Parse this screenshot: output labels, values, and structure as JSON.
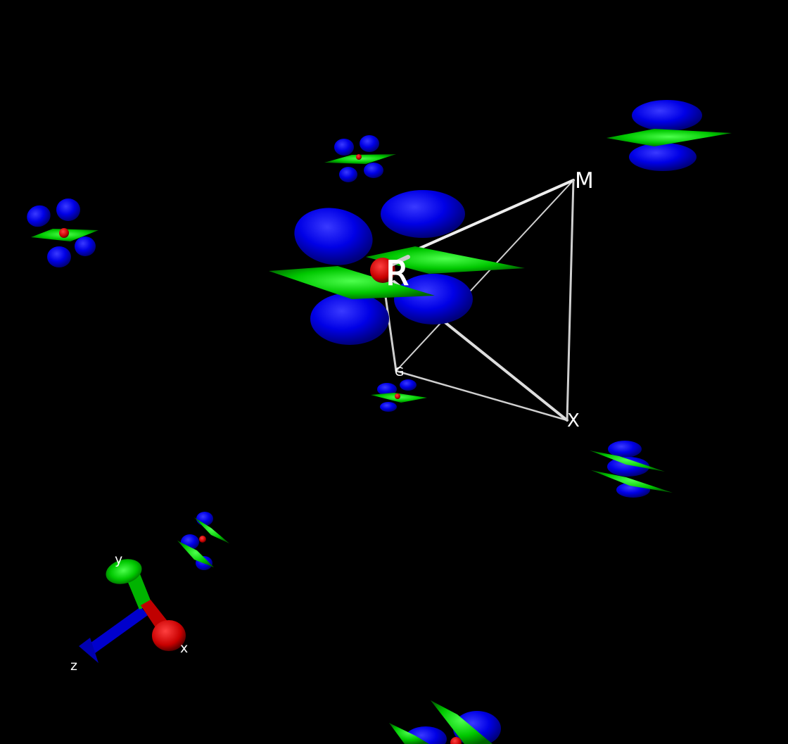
{
  "scene": {
    "background": "#000000",
    "colors": {
      "lobe_blue": "#0000ee",
      "disc_green": "#00cc00",
      "atom_red": "#cc0000",
      "line_white": "#cfcfcf"
    },
    "brillouin_labels": {
      "gamma": "G",
      "R": "R",
      "M": "M",
      "X": "X"
    },
    "axes": {
      "x_label": "x",
      "y_label": "y",
      "z_label": "z"
    }
  }
}
